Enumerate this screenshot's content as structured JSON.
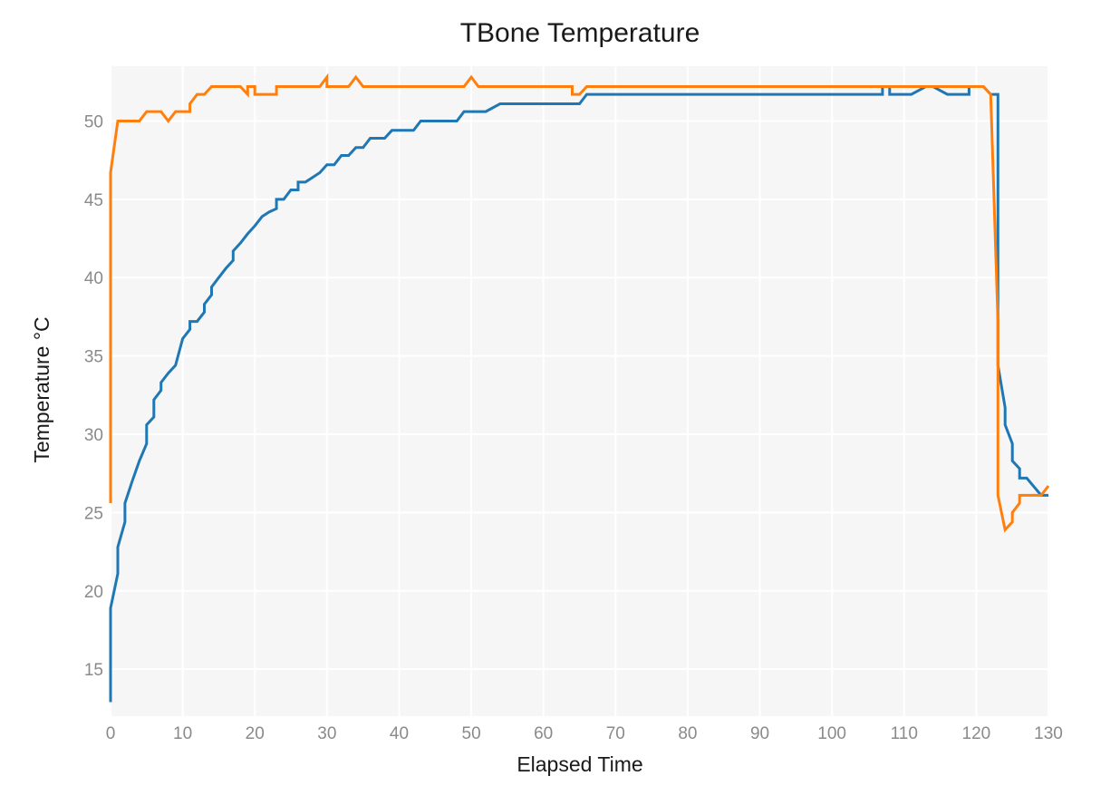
{
  "chart_data": {
    "type": "line",
    "title": "TBone Temperature",
    "xlabel": "Elapsed Time",
    "ylabel": "Temperature °C",
    "xlim": [
      0,
      130
    ],
    "ylim": [
      12,
      53.5
    ],
    "xticks": [
      0,
      10,
      20,
      30,
      40,
      50,
      60,
      70,
      80,
      90,
      100,
      110,
      120,
      130
    ],
    "yticks": [
      15,
      20,
      25,
      30,
      35,
      40,
      45,
      50
    ],
    "grid": true,
    "background": "#f6f6f6",
    "series": [
      {
        "color": "#1f77b4",
        "points": [
          [
            0,
            12.9
          ],
          [
            0,
            18.9
          ],
          [
            1,
            21.1
          ],
          [
            1,
            22.8
          ],
          [
            2,
            24.4
          ],
          [
            2,
            25.6
          ],
          [
            3,
            27.0
          ],
          [
            4,
            28.3
          ],
          [
            5,
            29.4
          ],
          [
            5,
            30.6
          ],
          [
            6,
            31.1
          ],
          [
            6,
            32.2
          ],
          [
            7,
            32.8
          ],
          [
            7,
            33.3
          ],
          [
            8,
            33.9
          ],
          [
            9,
            34.4
          ],
          [
            10,
            36.1
          ],
          [
            11,
            36.7
          ],
          [
            11,
            37.2
          ],
          [
            12,
            37.2
          ],
          [
            13,
            37.8
          ],
          [
            13,
            38.3
          ],
          [
            14,
            38.9
          ],
          [
            14,
            39.4
          ],
          [
            15,
            40.0
          ],
          [
            16,
            40.6
          ],
          [
            17,
            41.1
          ],
          [
            17,
            41.7
          ],
          [
            18,
            42.2
          ],
          [
            19,
            42.8
          ],
          [
            20,
            43.3
          ],
          [
            21,
            43.9
          ],
          [
            22,
            44.2
          ],
          [
            23,
            44.4
          ],
          [
            23,
            45.0
          ],
          [
            24,
            45.0
          ],
          [
            25,
            45.6
          ],
          [
            26,
            45.6
          ],
          [
            26,
            46.1
          ],
          [
            27,
            46.1
          ],
          [
            28,
            46.4
          ],
          [
            29,
            46.7
          ],
          [
            30,
            47.2
          ],
          [
            31,
            47.2
          ],
          [
            32,
            47.8
          ],
          [
            33,
            47.8
          ],
          [
            34,
            48.3
          ],
          [
            35,
            48.3
          ],
          [
            36,
            48.9
          ],
          [
            38,
            48.9
          ],
          [
            39,
            49.4
          ],
          [
            42,
            49.4
          ],
          [
            43,
            50.0
          ],
          [
            48,
            50.0
          ],
          [
            49,
            50.6
          ],
          [
            52,
            50.6
          ],
          [
            54,
            51.1
          ],
          [
            65,
            51.1
          ],
          [
            66,
            51.7
          ],
          [
            107,
            51.7
          ],
          [
            107,
            52.2
          ],
          [
            108,
            52.2
          ],
          [
            108,
            51.7
          ],
          [
            111,
            51.7
          ],
          [
            113,
            52.2
          ],
          [
            114,
            52.2
          ],
          [
            116,
            51.7
          ],
          [
            119,
            51.7
          ],
          [
            119,
            52.2
          ],
          [
            121,
            52.2
          ],
          [
            122,
            51.7
          ],
          [
            123,
            51.7
          ],
          [
            123,
            34.4
          ],
          [
            124,
            31.7
          ],
          [
            124,
            30.6
          ],
          [
            125,
            29.4
          ],
          [
            125,
            28.3
          ],
          [
            126,
            27.8
          ],
          [
            126,
            27.2
          ],
          [
            127,
            27.2
          ],
          [
            129,
            26.1
          ],
          [
            130,
            26.1
          ]
        ]
      },
      {
        "color": "#ff7f0e",
        "points": [
          [
            0,
            25.6
          ],
          [
            0,
            46.7
          ],
          [
            1,
            50.0
          ],
          [
            4,
            50.0
          ],
          [
            5,
            50.6
          ],
          [
            7,
            50.6
          ],
          [
            8,
            50.0
          ],
          [
            9,
            50.6
          ],
          [
            11,
            50.6
          ],
          [
            11,
            51.1
          ],
          [
            12,
            51.7
          ],
          [
            13,
            51.7
          ],
          [
            14,
            52.2
          ],
          [
            18,
            52.2
          ],
          [
            19,
            51.7
          ],
          [
            19,
            52.2
          ],
          [
            20,
            52.2
          ],
          [
            20,
            51.7
          ],
          [
            23,
            51.7
          ],
          [
            23,
            52.2
          ],
          [
            29,
            52.2
          ],
          [
            30,
            52.8
          ],
          [
            30,
            52.2
          ],
          [
            33,
            52.2
          ],
          [
            34,
            52.8
          ],
          [
            35,
            52.2
          ],
          [
            49,
            52.2
          ],
          [
            50,
            52.8
          ],
          [
            51,
            52.2
          ],
          [
            64,
            52.2
          ],
          [
            64,
            51.7
          ],
          [
            65,
            51.7
          ],
          [
            66,
            52.2
          ],
          [
            121,
            52.2
          ],
          [
            122,
            51.7
          ],
          [
            123,
            37.2
          ],
          [
            123,
            26.1
          ],
          [
            124,
            23.9
          ],
          [
            125,
            24.4
          ],
          [
            125,
            25.0
          ],
          [
            126,
            25.6
          ],
          [
            126,
            26.1
          ],
          [
            129,
            26.1
          ],
          [
            130,
            26.7
          ]
        ]
      }
    ]
  }
}
